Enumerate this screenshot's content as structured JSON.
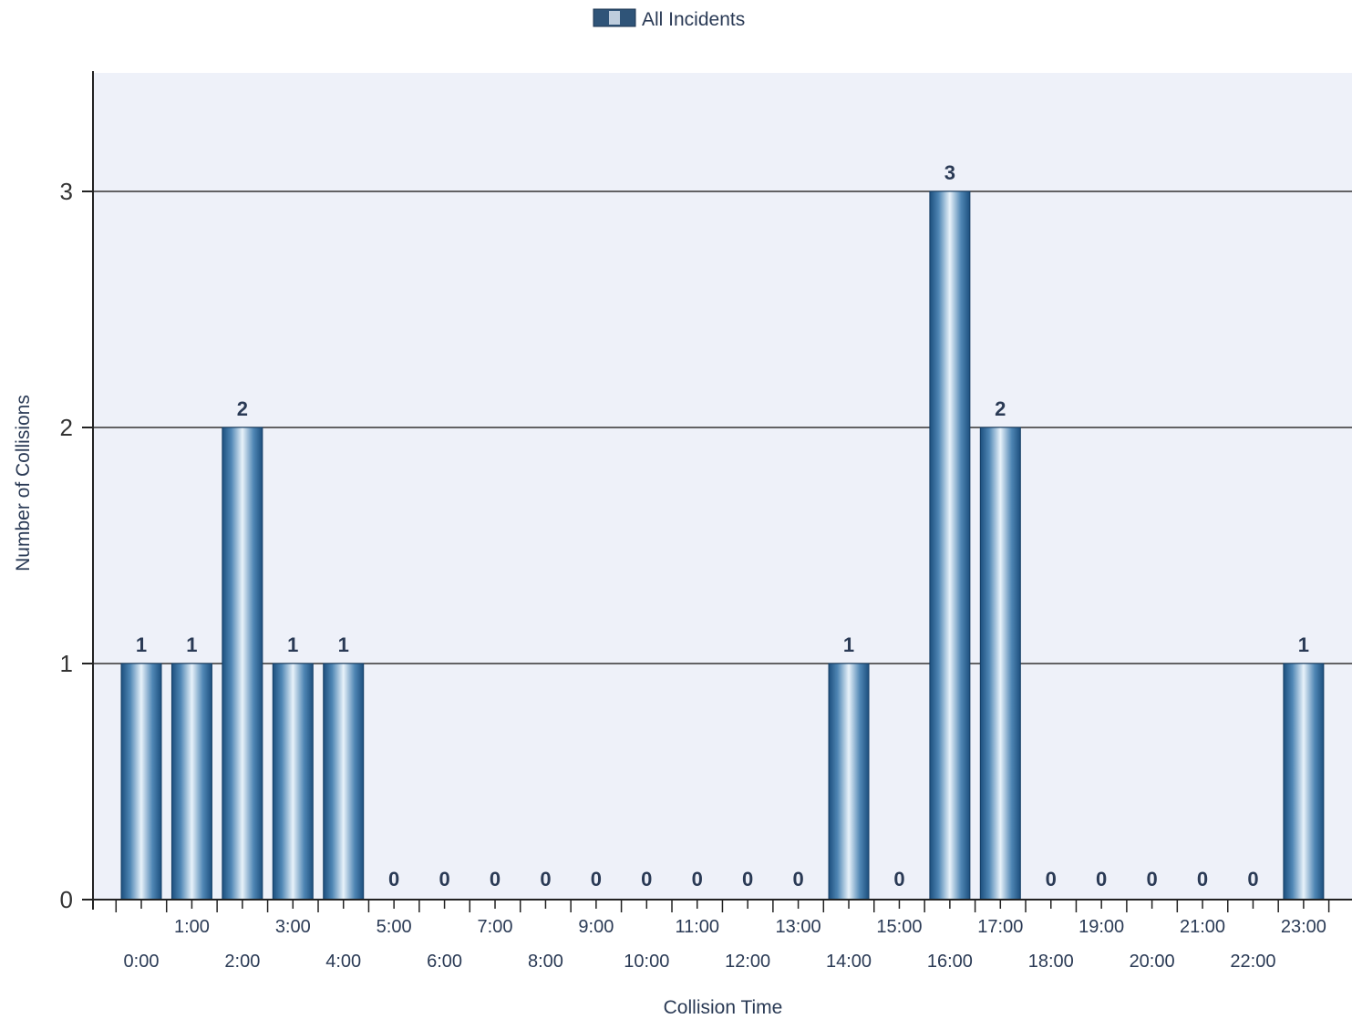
{
  "chart_data": {
    "type": "bar",
    "title": "",
    "legend": {
      "position": "top-center",
      "entries": [
        "All Incidents"
      ]
    },
    "xlabel": "Collision Time",
    "ylabel": "Number of Collisions",
    "ylim": [
      0,
      3.5
    ],
    "yticks": [
      0,
      1,
      2,
      3
    ],
    "grid": true,
    "categories": [
      "0:00",
      "1:00",
      "2:00",
      "3:00",
      "4:00",
      "5:00",
      "6:00",
      "7:00",
      "8:00",
      "9:00",
      "10:00",
      "11:00",
      "12:00",
      "13:00",
      "14:00",
      "15:00",
      "16:00",
      "17:00",
      "18:00",
      "19:00",
      "20:00",
      "21:00",
      "22:00",
      "23:00"
    ],
    "series": [
      {
        "name": "All Incidents",
        "values": [
          1,
          1,
          2,
          1,
          1,
          0,
          0,
          0,
          0,
          0,
          0,
          0,
          0,
          0,
          1,
          0,
          3,
          2,
          0,
          0,
          0,
          0,
          0,
          1
        ]
      }
    ],
    "colors": {
      "bar_dark": "#1c4f7e",
      "bar_light": "#e8f2fa",
      "plot_bg": "#eef1f9",
      "grid": "#333333"
    }
  }
}
